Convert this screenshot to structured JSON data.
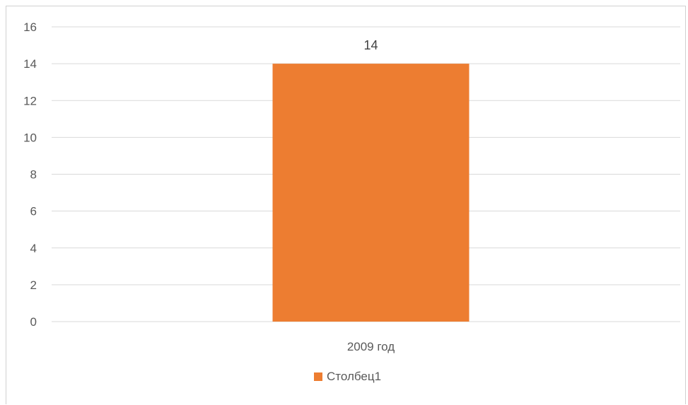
{
  "chart_data": {
    "type": "bar",
    "categories": [
      "2009 год"
    ],
    "series": [
      {
        "name": "Столбец1",
        "values": [
          14
        ],
        "color": "#ED7D31"
      }
    ],
    "title": "",
    "xlabel": "",
    "ylabel": "",
    "ylim": [
      0,
      16
    ],
    "yticks": [
      0,
      2,
      4,
      6,
      8,
      10,
      12,
      14,
      16
    ],
    "ytick_labels": [
      "0",
      "2",
      "4",
      "6",
      "8",
      "10",
      "12",
      "14",
      "16"
    ],
    "data_labels": [
      "14"
    ],
    "grid": true,
    "legend_position": "bottom",
    "gridline_color": "#d9d9d9"
  }
}
